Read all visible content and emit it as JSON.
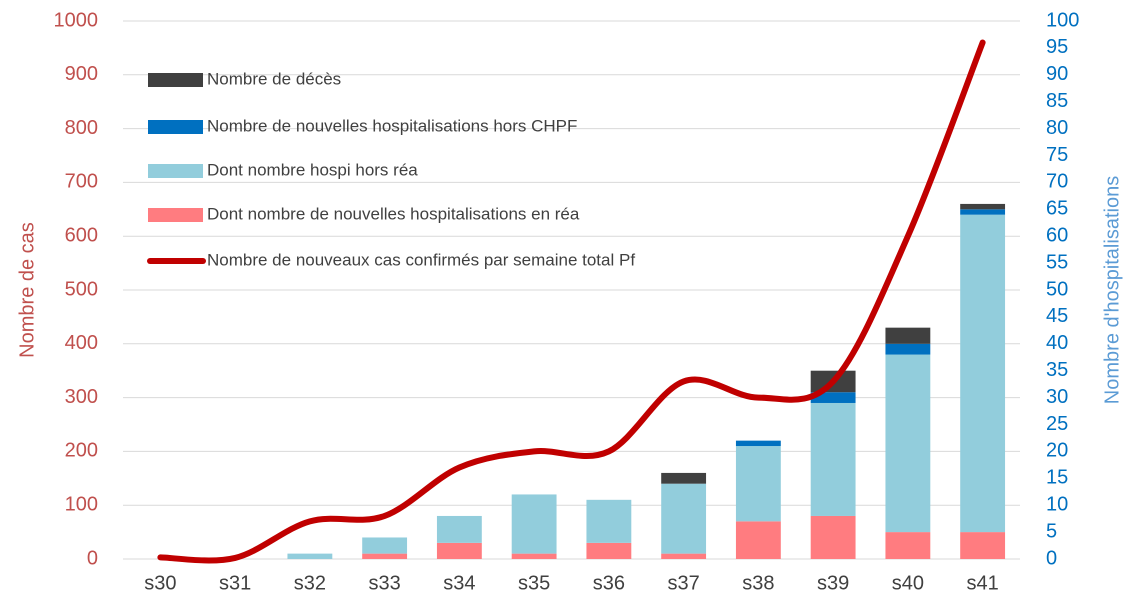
{
  "chart_data": {
    "type": "bar",
    "categories": [
      "s30",
      "s31",
      "s32",
      "s33",
      "s34",
      "s35",
      "s36",
      "s37",
      "s38",
      "s39",
      "s40",
      "s41"
    ],
    "series": [
      {
        "name": "Nombre de décès",
        "color": "#404040",
        "axis": "y2",
        "values": [
          0,
          0,
          0,
          0,
          0,
          0,
          0,
          2,
          0,
          4,
          3,
          1
        ]
      },
      {
        "name": "Nombre de nouvelles hospitalisations hors CHPF",
        "color": "#0070c0",
        "axis": "y2",
        "values": [
          0,
          0,
          0,
          0,
          0,
          0,
          0,
          0,
          1,
          2,
          2,
          1
        ]
      },
      {
        "name": "Dont nombre hospi hors réa",
        "color": "#92cddc",
        "axis": "y2",
        "values": [
          0,
          0,
          1,
          3,
          5,
          11,
          8,
          13,
          14,
          21,
          33,
          59
        ]
      },
      {
        "name": "Dont nombre de nouvelles hospitalisations en réa",
        "color": "#ff7c80",
        "axis": "y2",
        "values": [
          0,
          0,
          0,
          1,
          3,
          1,
          3,
          1,
          7,
          8,
          5,
          5
        ]
      },
      {
        "name": "Nombre de nouveaux cas confirmés par semaine total Pf",
        "color": "#c00000",
        "type": "line",
        "axis": "y",
        "values": [
          3,
          2,
          70,
          80,
          170,
          200,
          200,
          330,
          300,
          330,
          600,
          960
        ]
      }
    ],
    "ylabel": "Nombre de cas",
    "y2label": "Nombre d'hospitalisations",
    "ylim": [
      0,
      1000
    ],
    "yticks": [
      0,
      100,
      200,
      300,
      400,
      500,
      600,
      700,
      800,
      900,
      1000
    ],
    "y2lim": [
      0,
      100
    ],
    "y2ticks": [
      0,
      5,
      10,
      15,
      20,
      25,
      30,
      35,
      40,
      45,
      50,
      55,
      60,
      65,
      70,
      75,
      80,
      85,
      90,
      95,
      100
    ],
    "grid": true,
    "legend": "top-left"
  }
}
